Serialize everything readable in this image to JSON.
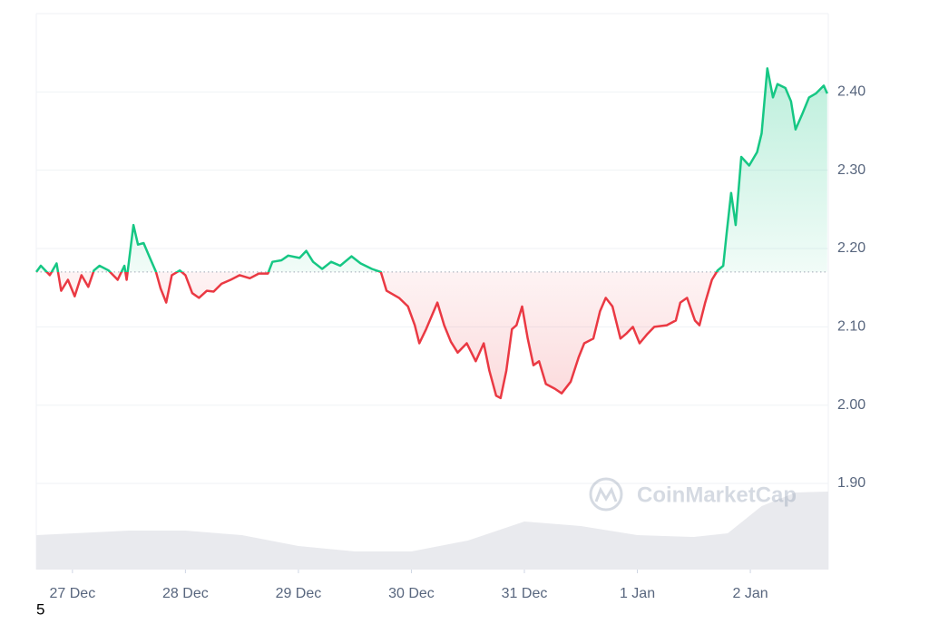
{
  "chart_data": {
    "type": "line",
    "x": [
      -0.32,
      -0.28,
      -0.2,
      -0.14,
      -0.1,
      -0.04,
      0.02,
      0.08,
      0.14,
      0.19,
      0.24,
      0.32,
      0.4,
      0.46,
      0.48,
      0.54,
      0.58,
      0.63,
      0.68,
      0.74,
      0.78,
      0.83,
      0.88,
      0.95,
      1.0,
      1.06,
      1.12,
      1.19,
      1.25,
      1.32,
      1.4,
      1.48,
      1.57,
      1.65,
      1.73,
      1.77,
      1.85,
      1.91,
      2.01,
      2.07,
      2.13,
      2.21,
      2.29,
      2.37,
      2.47,
      2.55,
      2.65,
      2.73,
      2.78,
      2.89,
      2.97,
      3.03,
      3.07,
      3.13,
      3.18,
      3.23,
      3.29,
      3.35,
      3.41,
      3.49,
      3.57,
      3.64,
      3.69,
      3.75,
      3.79,
      3.84,
      3.89,
      3.93,
      3.98,
      4.03,
      4.08,
      4.13,
      4.19,
      4.27,
      4.33,
      4.41,
      4.48,
      4.53,
      4.61,
      4.67,
      4.72,
      4.78,
      4.85,
      4.9,
      4.96,
      5.02,
      5.09,
      5.15,
      5.26,
      5.34,
      5.38,
      5.44,
      5.51,
      5.55,
      5.6,
      5.66,
      5.71,
      5.76,
      5.79,
      5.83,
      5.87,
      5.92,
      5.99,
      6.06,
      6.1,
      6.15,
      6.2,
      6.24,
      6.31,
      6.36,
      6.4,
      6.46,
      6.52,
      6.58,
      6.65,
      6.68
    ],
    "values": [
      2.17,
      2.178,
      2.166,
      2.181,
      2.146,
      2.16,
      2.139,
      2.166,
      2.151,
      2.172,
      2.178,
      2.172,
      2.16,
      2.178,
      2.16,
      2.23,
      2.205,
      2.207,
      2.19,
      2.17,
      2.149,
      2.131,
      2.166,
      2.172,
      2.166,
      2.143,
      2.137,
      2.146,
      2.145,
      2.155,
      2.16,
      2.166,
      2.162,
      2.168,
      2.168,
      2.183,
      2.185,
      2.191,
      2.188,
      2.197,
      2.183,
      2.174,
      2.183,
      2.178,
      2.19,
      2.181,
      2.174,
      2.17,
      2.146,
      2.137,
      2.126,
      2.102,
      2.079,
      2.097,
      2.114,
      2.131,
      2.102,
      2.081,
      2.067,
      2.079,
      2.056,
      2.079,
      2.044,
      2.012,
      2.009,
      2.044,
      2.097,
      2.102,
      2.126,
      2.085,
      2.051,
      2.056,
      2.027,
      2.021,
      2.015,
      2.03,
      2.061,
      2.079,
      2.085,
      2.12,
      2.137,
      2.126,
      2.085,
      2.091,
      2.1,
      2.079,
      2.091,
      2.1,
      2.102,
      2.108,
      2.131,
      2.137,
      2.108,
      2.102,
      2.131,
      2.16,
      2.172,
      2.178,
      2.219,
      2.271,
      2.23,
      2.317,
      2.306,
      2.323,
      2.347,
      2.43,
      2.393,
      2.41,
      2.405,
      2.388,
      2.352,
      2.372,
      2.393,
      2.398,
      2.408,
      2.398
    ],
    "baseline": 2.17,
    "up_color": "#16c784",
    "down_color": "#ea3943",
    "xlim": [
      -0.32,
      6.69
    ],
    "xticks": [
      {
        "value": 0,
        "label": "27 Dec"
      },
      {
        "value": 1,
        "label": "28 Dec"
      },
      {
        "value": 2,
        "label": "29 Dec"
      },
      {
        "value": 3,
        "label": "30 Dec"
      },
      {
        "value": 4,
        "label": "31 Dec"
      },
      {
        "value": 5,
        "label": "1 Jan"
      },
      {
        "value": 6,
        "label": "2 Jan"
      }
    ],
    "ylim": [
      1.79,
      2.5
    ],
    "yticks": [
      {
        "value": 1.9,
        "label": "1.90"
      },
      {
        "value": 2.0,
        "label": "2.00"
      },
      {
        "value": 2.1,
        "label": "2.10"
      },
      {
        "value": 2.2,
        "label": "2.20"
      },
      {
        "value": 2.3,
        "label": "2.30"
      },
      {
        "value": 2.4,
        "label": "2.40"
      }
    ],
    "grid": true,
    "volume": {
      "x": [
        -0.32,
        0.5,
        1.0,
        1.5,
        2.0,
        2.5,
        3.0,
        3.5,
        4.0,
        4.5,
        5.0,
        5.5,
        5.8,
        6.1,
        6.4,
        6.69
      ],
      "values": [
        38,
        43,
        43,
        38,
        26,
        20,
        20,
        32,
        53,
        48,
        38,
        36,
        40,
        70,
        85,
        86
      ],
      "ylim": [
        0,
        100
      ],
      "color": "#e9eaee"
    },
    "watermark": "CoinMarketCap"
  },
  "footnote": "5"
}
